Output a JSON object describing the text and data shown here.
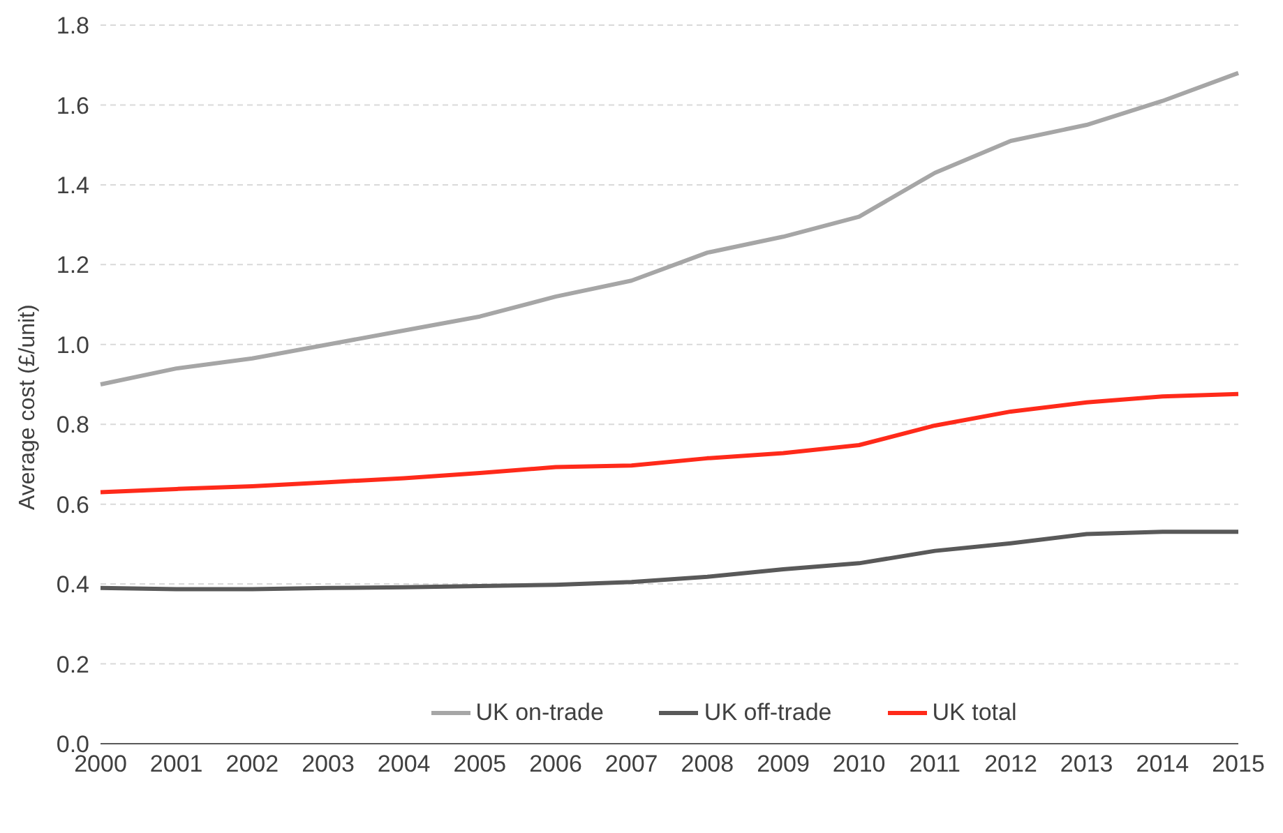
{
  "chart_data": {
    "type": "line",
    "ylabel": "Average cost (£/unit)",
    "categories": [
      "2000",
      "2001",
      "2002",
      "2003",
      "2004",
      "2005",
      "2006",
      "2007",
      "2008",
      "2009",
      "2010",
      "2011",
      "2012",
      "2013",
      "2014",
      "2015"
    ],
    "series": [
      {
        "name": "UK on-trade",
        "color": "#a6a6a6",
        "values": [
          0.9,
          0.94,
          0.965,
          1.0,
          1.035,
          1.07,
          1.12,
          1.16,
          1.23,
          1.27,
          1.32,
          1.43,
          1.51,
          1.55,
          1.61,
          1.68
        ]
      },
      {
        "name": "UK off-trade",
        "color": "#595959",
        "values": [
          0.39,
          0.387,
          0.387,
          0.39,
          0.392,
          0.395,
          0.398,
          0.405,
          0.418,
          0.437,
          0.452,
          0.483,
          0.502,
          0.525,
          0.531,
          0.531
        ]
      },
      {
        "name": "UK total",
        "color": "#ff2a1a",
        "values": [
          0.63,
          0.638,
          0.645,
          0.655,
          0.665,
          0.678,
          0.693,
          0.697,
          0.715,
          0.728,
          0.748,
          0.797,
          0.832,
          0.855,
          0.87,
          0.876
        ]
      }
    ],
    "ylim": [
      0,
      1.8
    ],
    "yticks": [
      {
        "value": 0,
        "label": "0.0"
      },
      0.2,
      0.4,
      0.6,
      0.8,
      {
        "value": 1,
        "label": "1.0"
      },
      1.2,
      1.4,
      1.6,
      1.8
    ],
    "grid": "y",
    "legend": "bottom",
    "marker": "none",
    "line_style": "solid"
  }
}
